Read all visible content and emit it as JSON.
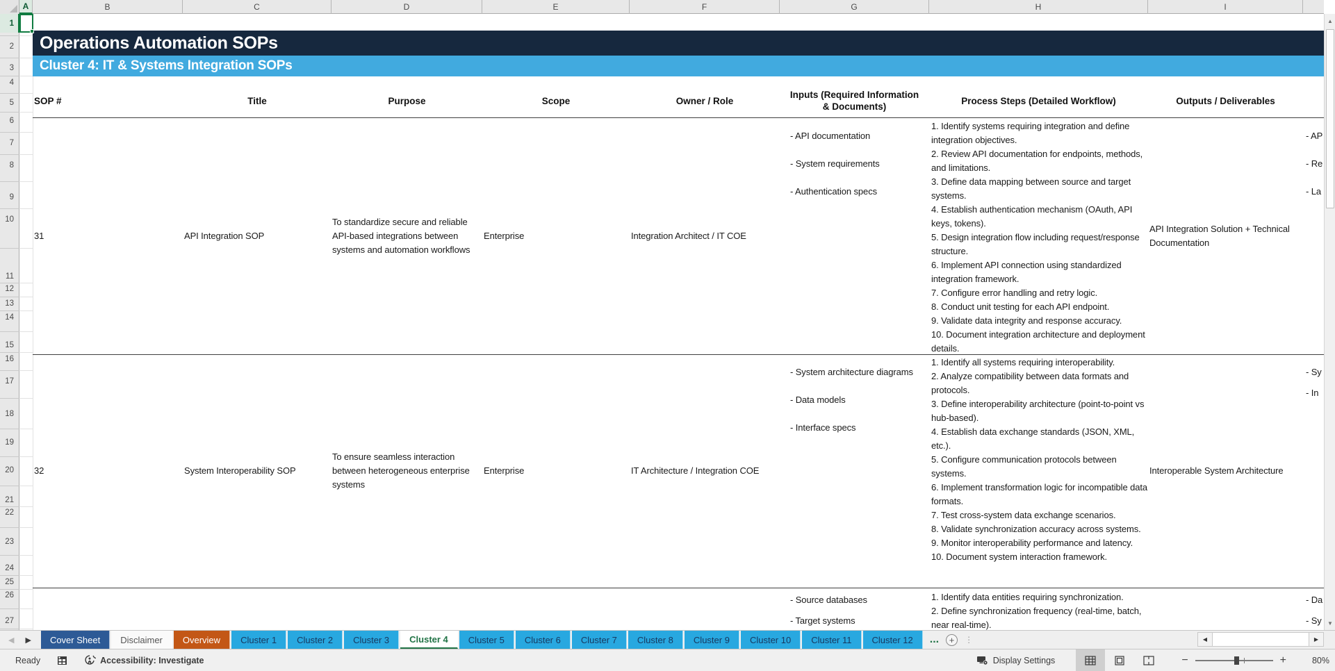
{
  "colors": {
    "title_bar_bg": "#16283E",
    "cluster_bar_bg": "#41AADF",
    "selection_green": "#107C41",
    "active_tab_green": "#217346",
    "cluster_tab_blue": "#28A8E0",
    "cover_tab_blue": "#2D5A96",
    "overview_tab_orange": "#C35716"
  },
  "sheet": {
    "title_bar": "Operations Automation SOPs",
    "cluster_bar": "Cluster 4: IT & Systems Integration SOPs",
    "column_letters": [
      "A",
      "B",
      "C",
      "D",
      "E",
      "F",
      "G",
      "H",
      "I"
    ],
    "row_numbers": [
      "1",
      "2",
      "3",
      "4",
      "5",
      "6",
      "7",
      "8",
      "9",
      "10",
      "11",
      "12",
      "13",
      "14",
      "15",
      "16",
      "17",
      "18",
      "19",
      "20",
      "21",
      "22",
      "23",
      "24",
      "25",
      "26",
      "27"
    ],
    "selected_cell": "A1"
  },
  "table": {
    "headers": [
      "SOP #",
      "Title",
      "Purpose",
      "Scope",
      "Owner / Role",
      "Inputs (Required Information & Documents)",
      "Process Steps (Detailed Workflow)",
      "Outputs / Deliverables"
    ],
    "rows": [
      {
        "sop": "31",
        "title": "API Integration SOP",
        "purpose": "To standardize secure and reliable API-based integrations between systems and automation workflows",
        "scope": "Enterprise",
        "owner": "Integration Architect / IT COE",
        "inputs": [
          "- API documentation",
          "- System requirements",
          "- Authentication specs"
        ],
        "steps": [
          "1. Identify systems requiring integration and define integration objectives.",
          "2. Review API documentation for endpoints, methods, and limitations.",
          "3. Define data mapping between source and target systems.",
          "4. Establish authentication mechanism (OAuth, API keys, tokens).",
          "5. Design integration flow including request/response structure.",
          "6. Implement API connection using standardized integration framework.",
          "7. Configure error handling and retry logic.",
          "8. Conduct unit testing for each API endpoint.",
          "9. Validate data integrity and response accuracy.",
          "10. Document integration architecture and deployment details."
        ],
        "outputs": "API Integration Solution + Technical Documentation",
        "overflow": [
          "- AP",
          "- Re",
          "- La"
        ]
      },
      {
        "sop": "32",
        "title": "System Interoperability SOP",
        "purpose": "To ensure seamless interaction between heterogeneous enterprise systems",
        "scope": "Enterprise",
        "owner": "IT Architecture / Integration COE",
        "inputs": [
          "- System architecture diagrams",
          "- Data models",
          "- Interface specs"
        ],
        "steps": [
          "1. Identify all systems requiring interoperability.",
          "2. Analyze compatibility between data formats and protocols.",
          "3. Define interoperability architecture (point-to-point vs hub-based).",
          "4. Establish data exchange standards (JSON, XML, etc.).",
          "5. Configure communication protocols between systems.",
          "6. Implement transformation logic for incompatible data formats.",
          "7. Test cross-system data exchange scenarios.",
          "8. Validate synchronization accuracy across systems.",
          "9. Monitor interoperability performance and latency.",
          "10. Document system interaction framework."
        ],
        "outputs": "Interoperable System Architecture",
        "overflow": [
          "- Sy",
          "- In"
        ]
      },
      {
        "inputs": [
          "- Source databases",
          "- Target systems"
        ],
        "steps": [
          "1. Identify data entities requiring synchronization.",
          "2. Define synchronization frequency (real-time, batch, near real-time)."
        ],
        "overflow": [
          "- Da",
          "- Sy"
        ]
      }
    ]
  },
  "tab_bar": {
    "tabs": [
      {
        "label": "Cover Sheet",
        "bg": "#2D5A96",
        "fg": "#FFFFFF"
      },
      {
        "label": "Disclaimer",
        "bg": "#FAFAFA",
        "fg": "#555555"
      },
      {
        "label": "Overview",
        "bg": "#C35716",
        "fg": "#FFFFFF"
      },
      {
        "label": "Cluster 1",
        "bg": "#28A8E0",
        "fg": "#17375E"
      },
      {
        "label": "Cluster 2",
        "bg": "#28A8E0",
        "fg": "#17375E"
      },
      {
        "label": "Cluster 3",
        "bg": "#28A8E0",
        "fg": "#17375E"
      },
      {
        "label": "Cluster 4",
        "bg": "#FFFFFF",
        "fg": "#217346",
        "active": true
      },
      {
        "label": "Cluster 5",
        "bg": "#28A8E0",
        "fg": "#17375E"
      },
      {
        "label": "Cluster 6",
        "bg": "#28A8E0",
        "fg": "#17375E"
      },
      {
        "label": "Cluster 7",
        "bg": "#28A8E0",
        "fg": "#17375E"
      },
      {
        "label": "Cluster 8",
        "bg": "#28A8E0",
        "fg": "#17375E"
      },
      {
        "label": "Cluster 9",
        "bg": "#28A8E0",
        "fg": "#17375E"
      },
      {
        "label": "Cluster 10",
        "bg": "#28A8E0",
        "fg": "#17375E"
      },
      {
        "label": "Cluster 11",
        "bg": "#28A8E0",
        "fg": "#17375E"
      },
      {
        "label": "Cluster 12",
        "bg": "#28A8E0",
        "fg": "#17375E"
      }
    ],
    "more_indicator": "..."
  },
  "status_bar": {
    "ready_label": "Ready",
    "accessibility_label": "Accessibility: Investigate",
    "display_settings_label": "Display Settings",
    "zoom_value": "80%"
  }
}
